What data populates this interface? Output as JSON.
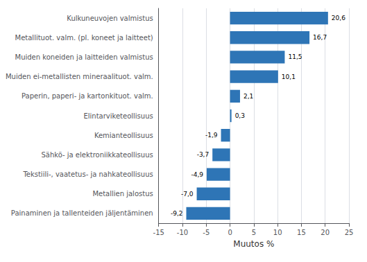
{
  "chart_data": {
    "type": "bar",
    "orientation": "horizontal",
    "categories": [
      "Painaminen ja tallenteiden jäljentäminen",
      "Metallien jalostus",
      "Tekstiili-, vaatetus- ja nahkateollisuus",
      "Sähkö- ja elektroniikkateollisuus",
      "Kemianteollisuus",
      "Elintarviketeollisuus",
      "Paperin, paperi- ja kartonkituot. valm.",
      "Muiden ei-metallisten mineraalituot. valm.",
      "Muiden koneiden ja laitteiden valmistus",
      "Metallituot. valm. (pl. koneet ja laitteet)",
      "Kulkuneuvojen valmistus"
    ],
    "values": [
      -9.2,
      -7.0,
      -4.9,
      -3.7,
      -1.9,
      0.3,
      2.1,
      10.1,
      11.5,
      16.7,
      20.6
    ],
    "value_labels": [
      "-9,2",
      "-7,0",
      "-4,9",
      "-3,7",
      "-1,9",
      "0,3",
      "2,1",
      "10,1",
      "11,5",
      "16,7",
      "20,6"
    ],
    "data_labels": true,
    "color": "#2e75b6",
    "xlabel": "Muutos %",
    "xlim": [
      -15,
      25
    ],
    "xticks": [
      -15,
      -10,
      -5,
      0,
      5,
      10,
      15,
      20,
      25
    ],
    "grid": true
  }
}
